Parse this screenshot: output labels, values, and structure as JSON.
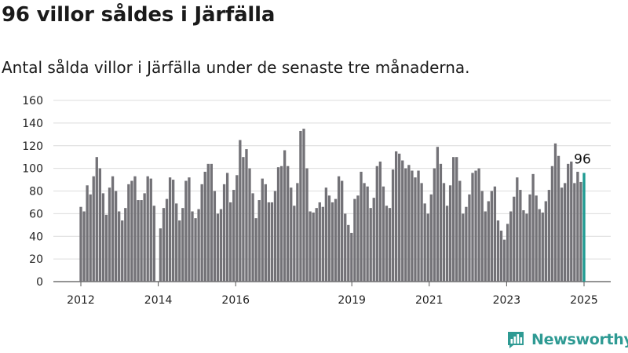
{
  "chart_data": {
    "type": "bar",
    "title": "96 villor såldes i Järfälla",
    "subtitle": "Antal sålda villor i Järfälla under de senaste tre månaderna.",
    "xlabel": "",
    "ylabel": "",
    "ylim": [
      0,
      160
    ],
    "yticks": [
      "0",
      "20",
      "40",
      "60",
      "80",
      "100",
      "120",
      "140",
      "160"
    ],
    "grid": true,
    "x_start_year": 2012,
    "x_end_year": 2025,
    "xticks": [
      {
        "label": "2012",
        "year": 2012
      },
      {
        "label": "2014",
        "year": 2014
      },
      {
        "label": "2016",
        "year": 2016
      },
      {
        "label": "2019",
        "year": 2019
      },
      {
        "label": "2021",
        "year": 2021
      },
      {
        "label": "2023",
        "year": 2023
      },
      {
        "label": "2025",
        "year": 2025
      }
    ],
    "bar_color": "#737277",
    "highlight_color": "#1f9b92",
    "annotation": "96",
    "values": [
      66,
      62,
      85,
      77,
      93,
      110,
      100,
      78,
      59,
      83,
      93,
      80,
      62,
      54,
      65,
      86,
      89,
      93,
      72,
      72,
      78,
      93,
      91,
      67,
      0,
      47,
      65,
      73,
      92,
      90,
      69,
      54,
      65,
      89,
      92,
      62,
      56,
      64,
      86,
      97,
      104,
      104,
      80,
      60,
      64,
      86,
      96,
      70,
      81,
      94,
      125,
      110,
      117,
      100,
      78,
      56,
      72,
      91,
      86,
      70,
      70,
      80,
      101,
      102,
      116,
      102,
      83,
      67,
      87,
      133,
      135,
      100,
      62,
      61,
      65,
      70,
      66,
      83,
      76,
      70,
      73,
      93,
      89,
      60,
      50,
      43,
      73,
      76,
      97,
      87,
      84,
      65,
      74,
      102,
      106,
      84,
      67,
      65,
      99,
      115,
      113,
      107,
      100,
      103,
      98,
      92,
      98,
      87,
      69,
      60,
      77,
      100,
      119,
      104,
      87,
      67,
      85,
      110,
      110,
      89,
      60,
      66,
      77,
      96,
      98,
      100,
      80,
      62,
      71,
      80,
      84,
      54,
      45,
      37,
      51,
      62,
      75,
      92,
      81,
      63,
      60,
      77,
      95,
      76,
      64,
      61,
      71,
      81,
      102,
      122,
      111,
      83,
      87,
      104,
      106,
      87,
      97,
      88,
      96
    ]
  },
  "brand": {
    "name": "Newsworthy",
    "logo_icon": "bar-chart-icon",
    "color": "#2e9a93"
  }
}
